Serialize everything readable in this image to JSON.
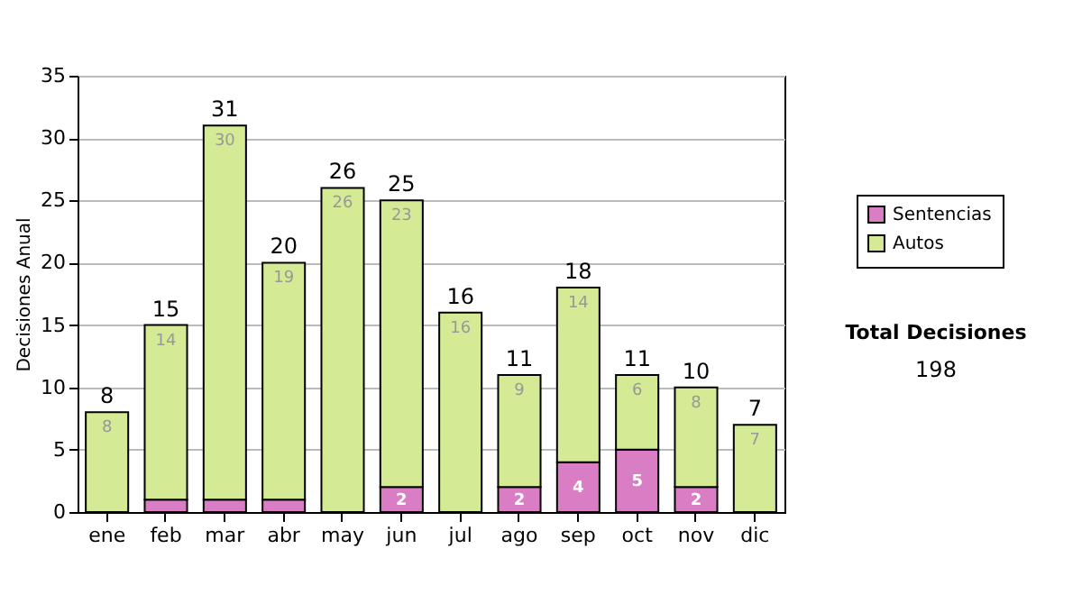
{
  "chart_data": {
    "type": "bar",
    "stacked": true,
    "ylabel": "Decisiones Anual",
    "categories": [
      "ene",
      "feb",
      "mar",
      "abr",
      "may",
      "jun",
      "jul",
      "ago",
      "sep",
      "oct",
      "nov",
      "dic"
    ],
    "series": [
      {
        "name": "Sentencias",
        "color": "#d97ec4",
        "values": [
          0,
          1,
          1,
          1,
          0,
          2,
          0,
          2,
          4,
          5,
          2,
          0
        ],
        "value_labels": [
          null,
          null,
          null,
          null,
          null,
          "2",
          null,
          "2",
          "4",
          "5",
          "2",
          null
        ]
      },
      {
        "name": "Autos",
        "color": "#d4ea94",
        "values": [
          8,
          14,
          30,
          19,
          26,
          23,
          16,
          9,
          14,
          6,
          8,
          7
        ],
        "value_labels": [
          "8",
          "14",
          "30",
          "19",
          "26",
          "23",
          "16",
          "9",
          "14",
          "6",
          "8",
          "7"
        ]
      }
    ],
    "totals": [
      "8",
      "15",
      "31",
      "20",
      "26",
      "25",
      "16",
      "11",
      "18",
      "11",
      "10",
      "7"
    ],
    "ylim": [
      0,
      35
    ],
    "yticks": [
      0,
      5,
      10,
      15,
      20,
      25,
      30,
      35
    ],
    "grid": "y",
    "legend": "right",
    "annotations": [
      "Total Decisiones",
      "198"
    ]
  }
}
